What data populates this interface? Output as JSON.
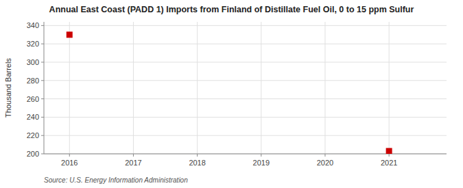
{
  "chart_data": {
    "type": "scatter",
    "title": "Annual East Coast (PADD 1) Imports from Finland of Distillate Fuel Oil, 0 to 15 ppm Sulfur",
    "y_label": "Thousand Barrels",
    "source": "Source: U.S. Energy Information Administration",
    "x": [
      2016,
      2021
    ],
    "values": [
      330,
      203
    ],
    "color": "#cc0000",
    "marker": "square",
    "xlim": [
      2015.6,
      2021.9
    ],
    "ylim": [
      200,
      344
    ],
    "xticks": [
      2016,
      2017,
      2018,
      2019,
      2020,
      2021
    ],
    "yticks": [
      200,
      220,
      240,
      260,
      280,
      300,
      320,
      340
    ],
    "grid": true
  }
}
